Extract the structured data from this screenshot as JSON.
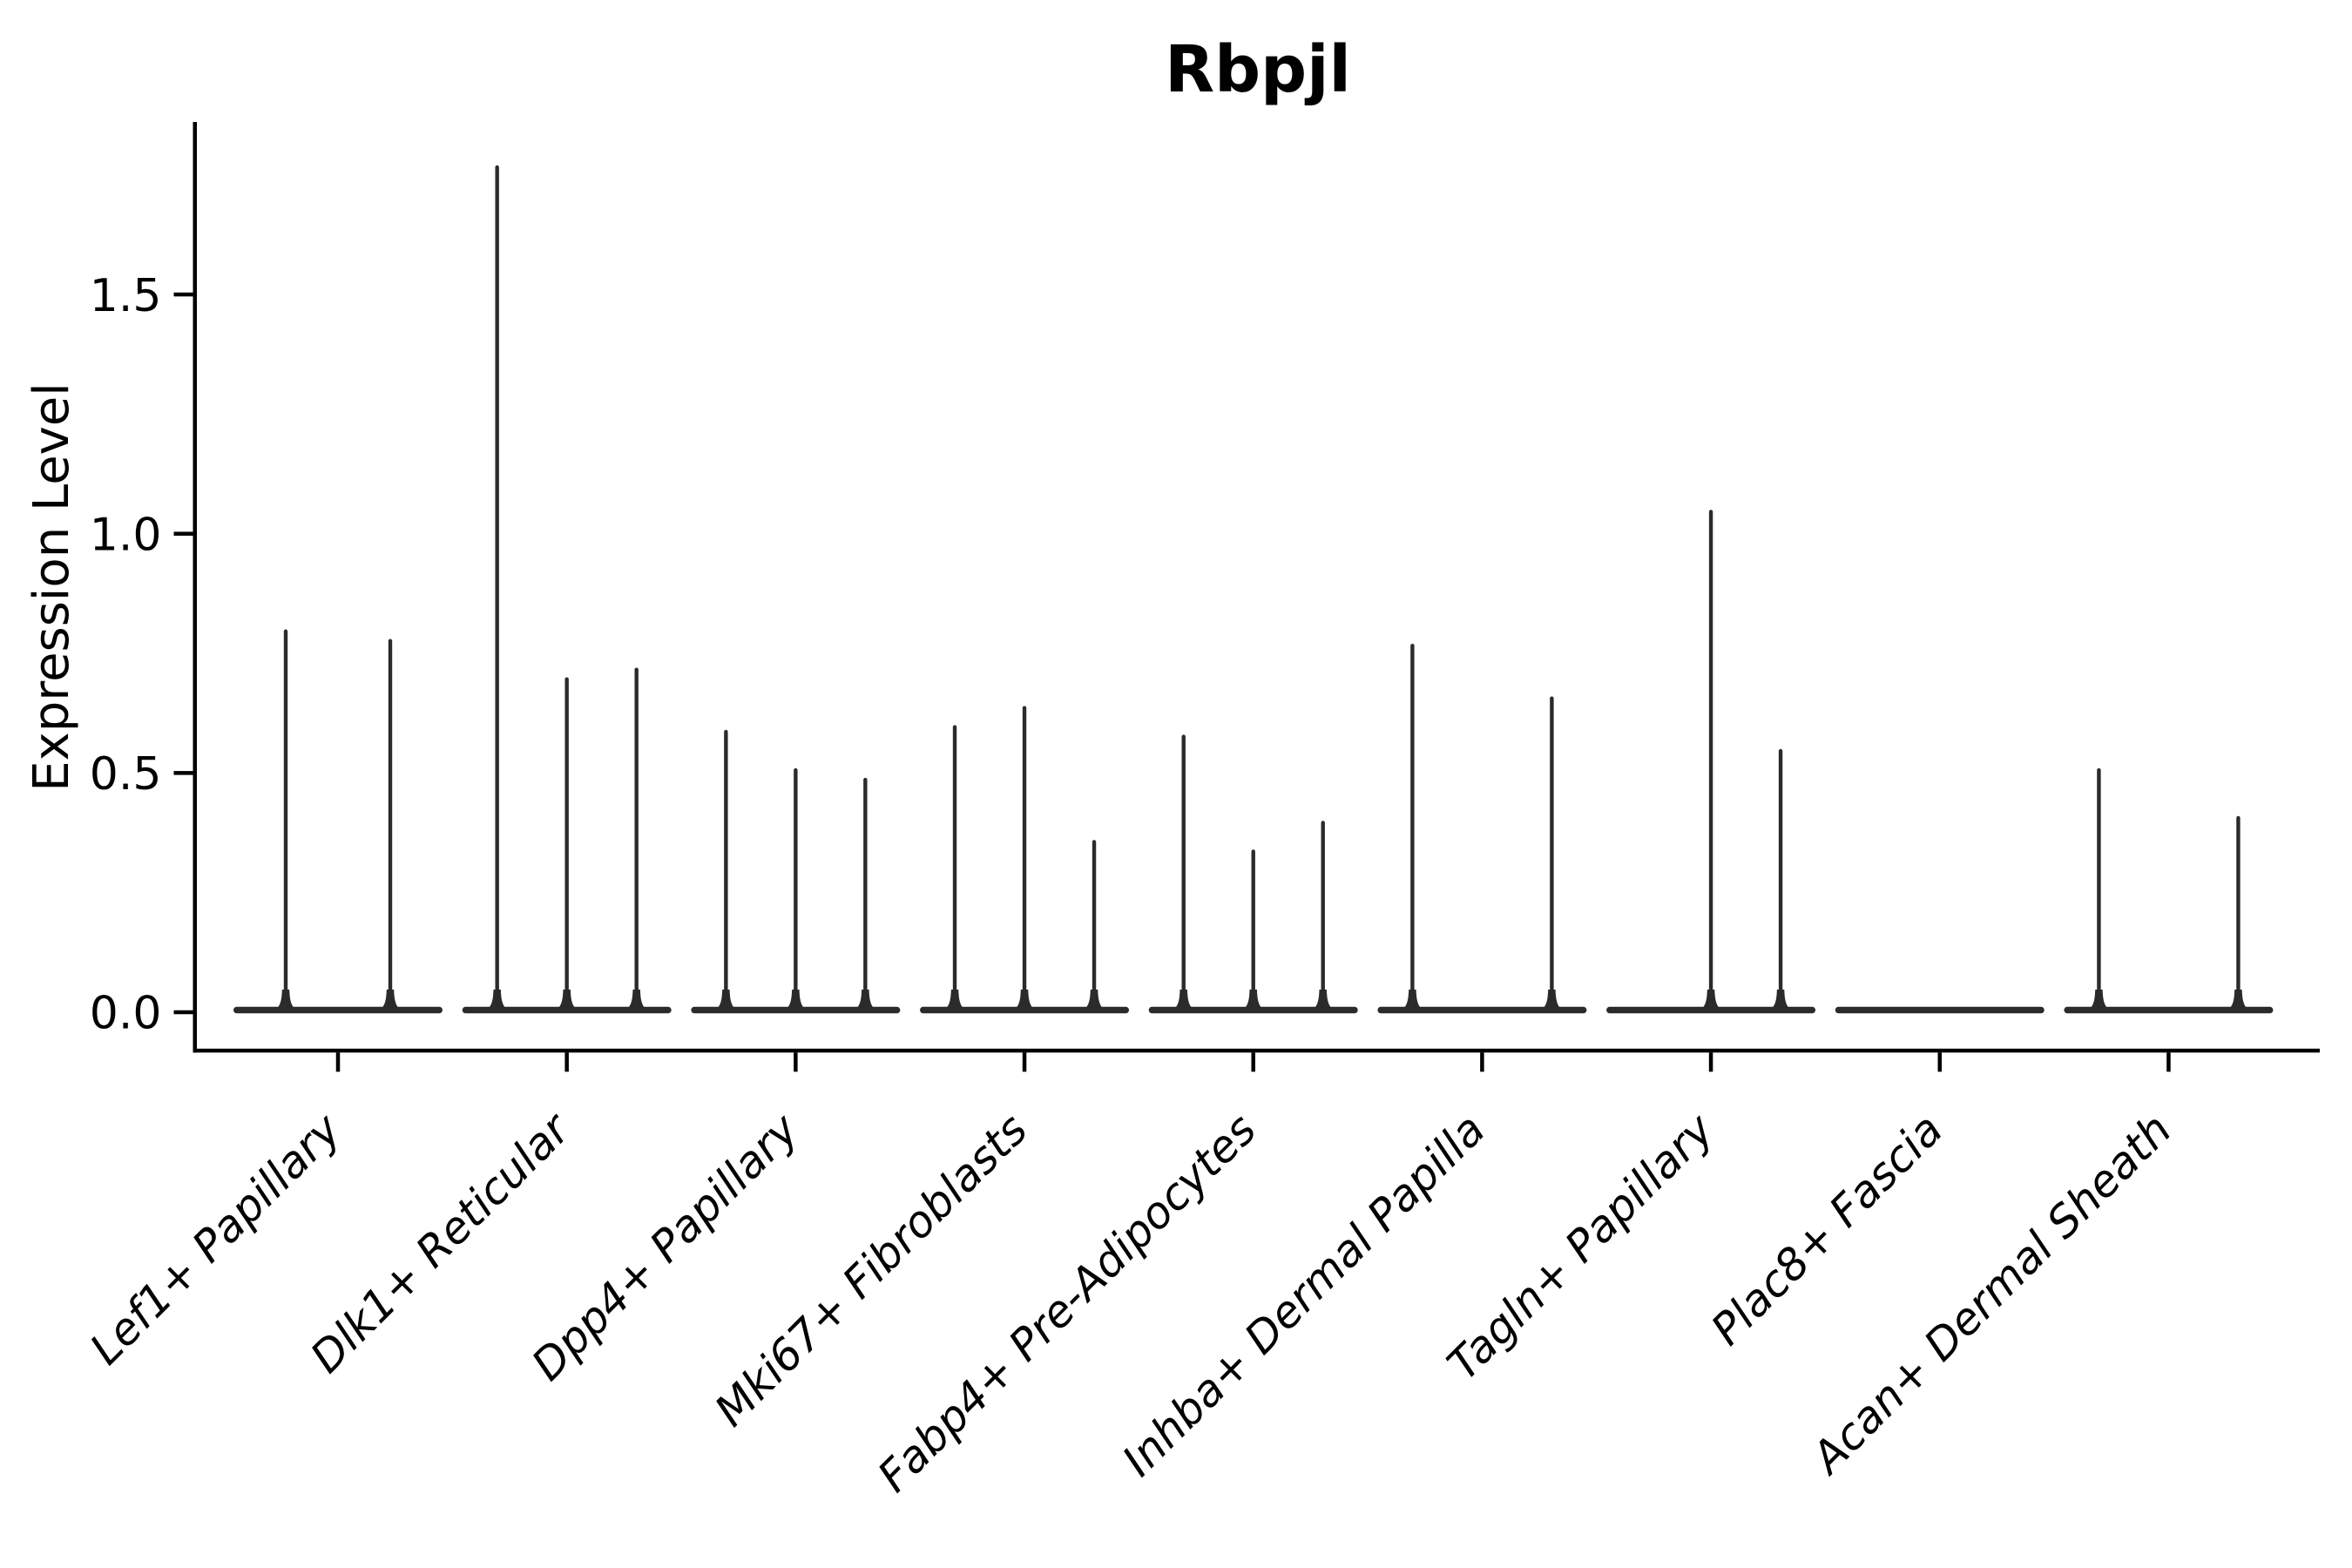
{
  "style": {
    "background": "#ffffff",
    "violin_color": "#2b2b2b",
    "axis_color": "#000000",
    "text_color": "#000000"
  },
  "chart_data": {
    "type": "violin",
    "title": "Rbpjl",
    "xlabel": "",
    "ylabel": "Expression Level",
    "ylim": [
      0,
      1.86
    ],
    "grid": false,
    "legend": "none",
    "yticks": [
      {
        "value": 0.0,
        "label": "0.0"
      },
      {
        "value": 0.5,
        "label": "0.5"
      },
      {
        "value": 1.0,
        "label": "1.0"
      },
      {
        "value": 1.5,
        "label": "1.5"
      }
    ],
    "categories": [
      "Lef1+ Papillary",
      "Dlk1+ Reticular",
      "Dpp4+ Papillary",
      "Mki67+ Fibroblasts",
      "Fabp4+ Pre-Adipocytes",
      "Inhba+ Dermal Papilla",
      "Tagln+ Papillary",
      "Plac8+ Fascia",
      "Acan+ Dermal Sheath"
    ],
    "groups": [
      {
        "category": "Lef1+ Papillary",
        "violin_max_expression": [
          0.8,
          0.78
        ]
      },
      {
        "category": "Dlk1+ Reticular",
        "violin_max_expression": [
          1.77,
          0.7,
          0.72
        ]
      },
      {
        "category": "Dpp4+ Papillary",
        "violin_max_expression": [
          0.59,
          0.51,
          0.49
        ]
      },
      {
        "category": "Mki67+ Fibroblasts",
        "violin_max_expression": [
          0.6,
          0.64,
          0.36
        ]
      },
      {
        "category": "Fabp4+ Pre-Adipocytes",
        "violin_max_expression": [
          0.58,
          0.34,
          0.4
        ]
      },
      {
        "category": "Inhba+ Dermal Papilla",
        "violin_max_expression": [
          0.77,
          0.0,
          0.66
        ]
      },
      {
        "category": "Tagln+ Papillary",
        "violin_max_expression": [
          0.0,
          1.05,
          0.55
        ]
      },
      {
        "category": "Plac8+ Fascia",
        "violin_max_expression": [
          0.0,
          0.0,
          0.0
        ]
      },
      {
        "category": "Acan+ Dermal Sheath",
        "violin_max_expression": [
          0.51,
          0.0,
          0.41
        ]
      }
    ]
  }
}
